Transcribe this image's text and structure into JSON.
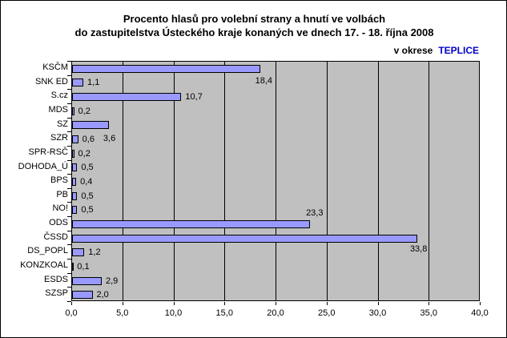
{
  "window": {
    "background": "#FFFFFF",
    "border_color": "#000000"
  },
  "chart_data": {
    "type": "bar",
    "orientation": "horizontal",
    "title_line1": "Procento hlasů pro volební strany a hnutí ve volbách",
    "title_line2": "do zastupitelstva Ústeckého kraje konaných ve dnech 17. - 18. října 2008",
    "subtitle_prefix": "v okrese",
    "subtitle_region": "TEPLICE",
    "categories": [
      "KSČM",
      "SNK ED",
      "S.cz",
      "MDS",
      "SZ",
      "SZR",
      "SPR-RSČ",
      "DOHODA_Ú",
      "BPS",
      "PB",
      "NO!",
      "ODS",
      "ČSSD",
      "DS_POPL",
      "KONZKOAL",
      "ESDS",
      "SZSP"
    ],
    "values": [
      18.4,
      1.1,
      10.7,
      0.2,
      3.6,
      0.6,
      0.2,
      0.5,
      0.4,
      0.5,
      0.5,
      23.3,
      33.8,
      1.2,
      0.1,
      2.9,
      2.0
    ],
    "value_labels": [
      "18,4",
      "1,1",
      "10,7",
      "0,2",
      "3,6",
      "0,6",
      "0,2",
      "0,5",
      "0,4",
      "0,5",
      "0,5",
      "23,3",
      "33,8",
      "1,2",
      "0,1",
      "2,9",
      "2,0"
    ],
    "xlabel": "",
    "ylabel": "",
    "xlim": [
      0,
      40
    ],
    "x_tick_step": 5,
    "x_tick_labels": [
      "0,0",
      "5,0",
      "10,0",
      "15,0",
      "20,0",
      "25,0",
      "30,0",
      "35,0",
      "40,0"
    ],
    "grid": true,
    "legend": false,
    "plot_bg": "#C0C0C0",
    "bar_fill": "#9999FF",
    "bar_border": "#000000",
    "grid_color": "#000000",
    "region_color": "#0000CC",
    "label_offsets": {
      "0": {
        "dx": -6,
        "dy": 15
      },
      "4": {
        "dx": -7,
        "dy": 17
      },
      "11": {
        "dx": -5,
        "dy": -14
      },
      "12": {
        "dx": -9,
        "dy": 13
      }
    }
  }
}
